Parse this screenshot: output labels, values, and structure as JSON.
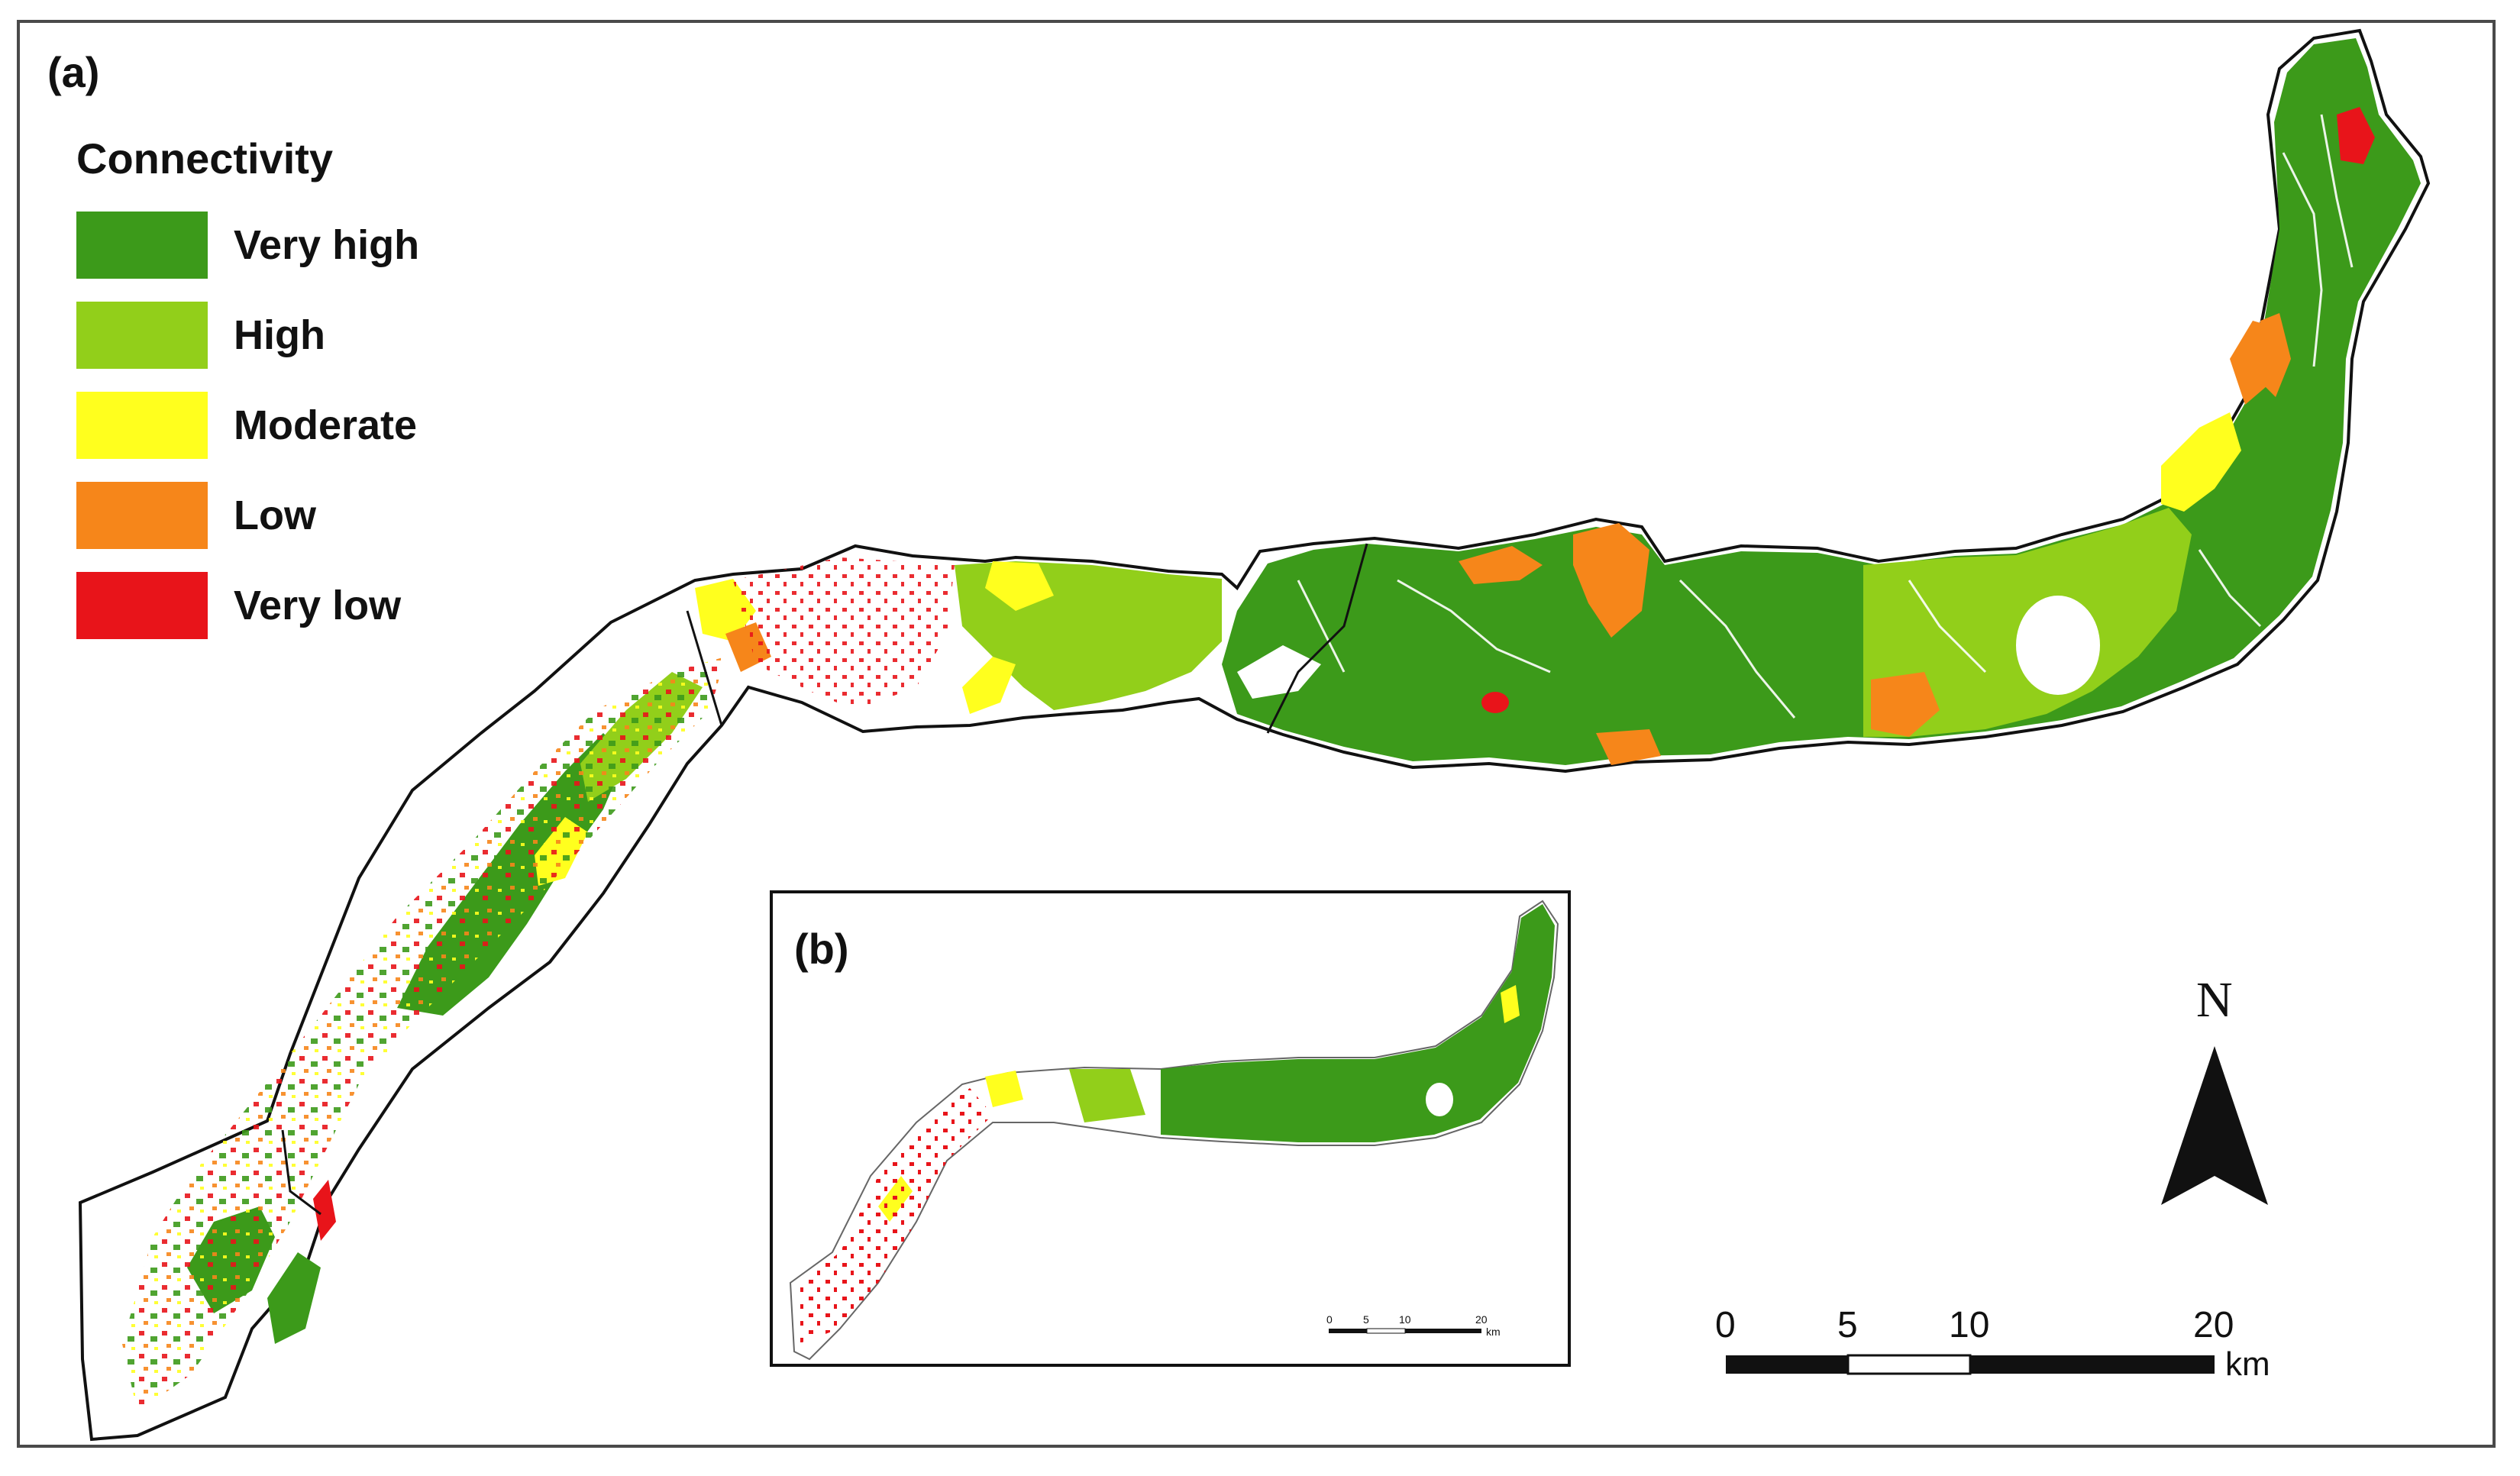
{
  "panel_a_label": "(a)",
  "panel_b_label": "(b)",
  "legend": {
    "title": "Connectivity",
    "items": [
      {
        "label": "Very high",
        "color": "#3c9a1a"
      },
      {
        "label": "High",
        "color": "#92cf1a"
      },
      {
        "label": "Moderate",
        "color": "#ffff1e"
      },
      {
        "label": "Low",
        "color": "#f6861a"
      },
      {
        "label": "Very low",
        "color": "#e8141a"
      }
    ]
  },
  "north_arrow": {
    "label": "N"
  },
  "scale_bar": {
    "ticks": [
      "0",
      "5",
      "10",
      "20"
    ],
    "unit": "km"
  },
  "inset_scale_bar": {
    "ticks": [
      "0",
      "5",
      "10",
      "20"
    ],
    "unit": "km"
  }
}
